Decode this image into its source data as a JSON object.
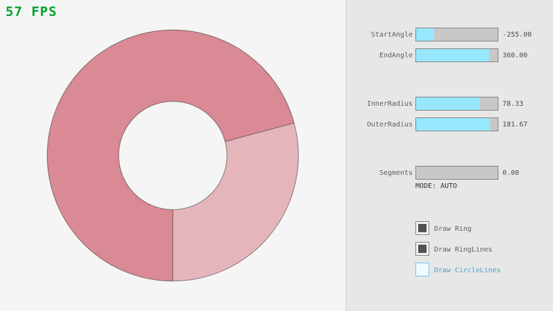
{
  "fps_label": "57 FPS",
  "panel": {
    "sliders": [
      {
        "label": "StartAngle",
        "value": "-255.00",
        "fill_pct": 21.7
      },
      {
        "label": "EndAngle",
        "value": "360.00",
        "fill_pct": 90.0
      },
      {
        "label": "InnerRadius",
        "value": "78.33",
        "fill_pct": 78.3
      },
      {
        "label": "OuterRadius",
        "value": "181.67",
        "fill_pct": 90.8
      },
      {
        "label": "Segments",
        "value": "0.00",
        "fill_pct": 0
      }
    ],
    "mode_label": "MODE: AUTO",
    "checkboxes": [
      {
        "label": "Draw Ring",
        "checked": true
      },
      {
        "label": "Draw RingLines",
        "checked": true
      },
      {
        "label": "Draw CircleLines",
        "checked": false
      }
    ]
  },
  "ring": {
    "start_angle": -255,
    "end_angle": 360,
    "inner_radius": 78.33,
    "outer_radius": 181.67,
    "color_single_pass": "#e5b5bc",
    "color_double_pass": "#d98a94",
    "outline_color": "rgba(0,0,0,0.45)"
  },
  "colors": {
    "fps_green": "#00a22f",
    "slider_fill": "#97e8ff",
    "slider_track": "#c8c8c8",
    "slider_border": "#838383",
    "panel_bg": "#e7e7e7",
    "canvas_bg": "#f5f5f5",
    "focus_blue": "#4a9fc8"
  }
}
